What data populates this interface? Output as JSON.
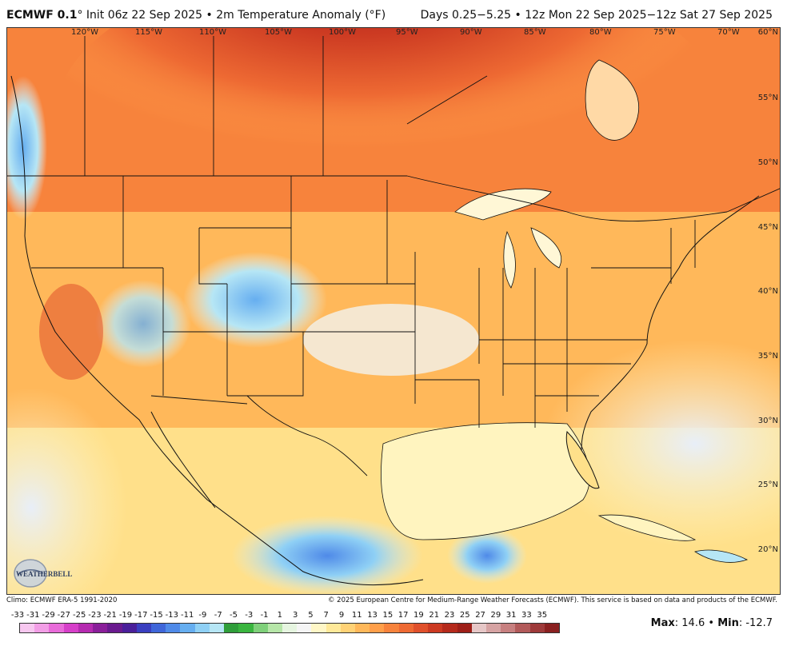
{
  "header": {
    "model": "ECMWF 0.1",
    "init": "° Init 06z 22 Sep 2025 • 2m Temperature Anomaly (°F)",
    "valid": "Days 0.25−5.25 • 12z Mon 22 Sep 2025−12z Sat 27 Sep 2025"
  },
  "map": {
    "longitudes": [
      "120°W",
      "115°W",
      "110°W",
      "105°W",
      "100°W",
      "95°W",
      "90°W",
      "85°W",
      "80°W",
      "75°W",
      "70°W"
    ],
    "latitudes": [
      "60°N",
      "55°N",
      "50°N",
      "45°N",
      "40°N",
      "35°N",
      "30°N",
      "25°N",
      "20°N"
    ],
    "logo_text": "WEATHERBELL"
  },
  "footer": {
    "climo": "Climo: ECMWF ERA-5 1991-2020",
    "copyright": "© 2025 European Centre for Medium-Range Weather Forecasts (ECMWF). This service is based on data and products of the ECMWF."
  },
  "scale": {
    "labels": [
      "-33",
      "-31",
      "-29",
      "-27",
      "-25",
      "-23",
      "-21",
      "-19",
      "-17",
      "-15",
      "-13",
      "-11",
      "-9",
      "-7",
      "-5",
      "-3",
      "-1",
      "1",
      "3",
      "5",
      "7",
      "9",
      "11",
      "13",
      "15",
      "17",
      "19",
      "21",
      "23",
      "25",
      "27",
      "29",
      "31",
      "33",
      "35"
    ],
    "colors": [
      "#f7c7ef",
      "#f29ee6",
      "#e86bd9",
      "#d63fc9",
      "#b52bb0",
      "#8a1f9a",
      "#6a1a8f",
      "#4a1f9a",
      "#3a3fc0",
      "#3f66d9",
      "#4f8ae8",
      "#66aef0",
      "#8fd0f5",
      "#b6e6f5",
      "#2f9e3a",
      "#3ab53f",
      "#7fd07a",
      "#b6e6a8",
      "#e6f5e0",
      "#f5f5f5",
      "#fff7c7",
      "#ffe999",
      "#ffd276",
      "#ffb85a",
      "#ff9f4a",
      "#f7833c",
      "#ee6a33",
      "#e0502b",
      "#cc3a22",
      "#b52a1c",
      "#9e1f18",
      "#e6c7c7",
      "#d6a3a3",
      "#c78080",
      "#b25a5a",
      "#9e3a3a",
      "#8a2020"
    ],
    "max_label": "Max",
    "max_value": "14.6",
    "min_label": "Min",
    "min_value": "-12.7",
    "separator": "•"
  }
}
